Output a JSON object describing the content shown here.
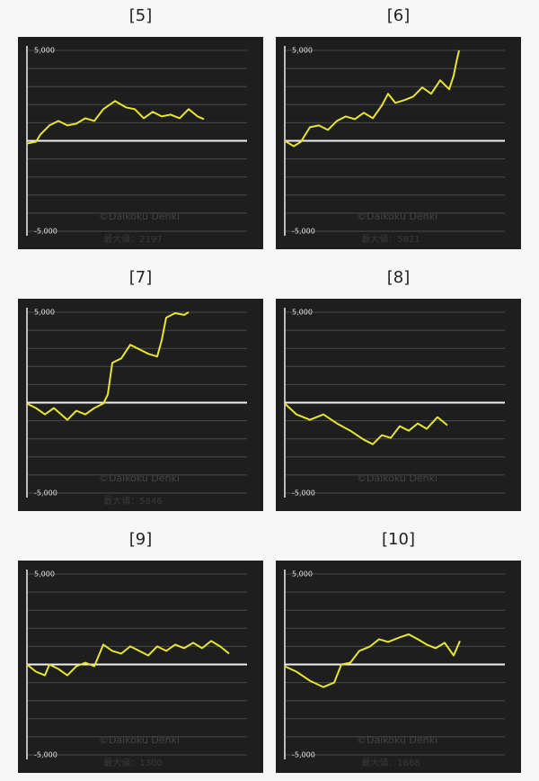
{
  "chart_data": [
    {
      "type": "line",
      "title": "[5]",
      "color": "#e6e632",
      "xlim": [
        0,
        245
      ],
      "ylim": [
        -5000,
        5000
      ],
      "yticks": [
        {
          "value": 5000,
          "label": "5,000"
        },
        {
          "value": -5000,
          "label": "-5,000"
        }
      ],
      "grid_yticks": [
        -5000,
        -4000,
        -3000,
        -2000,
        -1000,
        1000,
        2000,
        3000,
        4000,
        5000
      ],
      "x": [
        0,
        10,
        15,
        25,
        35,
        45,
        55,
        65,
        75,
        85,
        98,
        110,
        120,
        130,
        140,
        150,
        160,
        170,
        180,
        190,
        197
      ],
      "values": [
        -150,
        -50,
        350,
        850,
        1100,
        850,
        950,
        1250,
        1100,
        1750,
        2197,
        1850,
        1750,
        1250,
        1600,
        1350,
        1450,
        1250,
        1750,
        1350,
        1200
      ],
      "max_label": "最大値：2197",
      "watermark": "©Daikoku Denki"
    },
    {
      "type": "line",
      "title": "[6]",
      "color": "#e6e632",
      "xlim": [
        0,
        245
      ],
      "ylim": [
        -5000,
        5000
      ],
      "yticks": [
        {
          "value": 5000,
          "label": "5,000"
        },
        {
          "value": -5000,
          "label": "-5,000"
        }
      ],
      "grid_yticks": [
        -5000,
        -4000,
        -3000,
        -2000,
        -1000,
        1000,
        2000,
        3000,
        4000,
        5000
      ],
      "x": [
        0,
        10,
        18,
        28,
        38,
        48,
        58,
        68,
        78,
        88,
        98,
        108,
        115,
        123,
        133,
        143,
        153,
        163,
        173,
        183,
        188,
        191,
        194
      ],
      "values": [
        0,
        -300,
        -50,
        750,
        850,
        600,
        1100,
        1350,
        1200,
        1550,
        1250,
        1950,
        2600,
        2100,
        2250,
        2450,
        2950,
        2600,
        3350,
        2850,
        3600,
        4350,
        5000
      ],
      "max_label": "最大値：5821",
      "watermark": "©Daikoku Denki"
    },
    {
      "type": "line",
      "title": "[7]",
      "color": "#e6e632",
      "xlim": [
        0,
        245
      ],
      "ylim": [
        -5000,
        5000
      ],
      "yticks": [
        {
          "value": 5000,
          "label": "5,000"
        },
        {
          "value": -5000,
          "label": "-5,000"
        }
      ],
      "grid_yticks": [
        -5000,
        -4000,
        -3000,
        -2000,
        -1000,
        1000,
        2000,
        3000,
        4000,
        5000
      ],
      "x": [
        0,
        10,
        20,
        30,
        45,
        55,
        65,
        75,
        85,
        90,
        95,
        105,
        115,
        125,
        135,
        145,
        150,
        155,
        165,
        175,
        180
      ],
      "values": [
        -50,
        -300,
        -650,
        -300,
        -950,
        -450,
        -650,
        -300,
        -50,
        450,
        2200,
        2450,
        3200,
        2950,
        2700,
        2550,
        3450,
        4700,
        4950,
        4850,
        5000
      ],
      "max_label": "最大値：5846",
      "watermark": "©Daikoku Denki"
    },
    {
      "type": "line",
      "title": "[8]",
      "color": "#e6e632",
      "xlim": [
        0,
        245
      ],
      "ylim": [
        -5000,
        5000
      ],
      "yticks": [
        {
          "value": 5000,
          "label": "5,000"
        },
        {
          "value": -5000,
          "label": "-5,000"
        }
      ],
      "grid_yticks": [
        -5000,
        -4000,
        -3000,
        -2000,
        -1000,
        1000,
        2000,
        3000,
        4000,
        5000
      ],
      "x": [
        0,
        13,
        28,
        43,
        58,
        73,
        88,
        98,
        108,
        118,
        128,
        138,
        148,
        158,
        170,
        181
      ],
      "values": [
        -50,
        -650,
        -950,
        -650,
        -1150,
        -1550,
        -2050,
        -2300,
        -1800,
        -1950,
        -1300,
        -1550,
        -1150,
        -1450,
        -800,
        -1250
      ],
      "watermark": "©Daikoku Denki"
    },
    {
      "type": "line",
      "title": "[9]",
      "color": "#e6e632",
      "xlim": [
        0,
        245
      ],
      "ylim": [
        -5000,
        5000
      ],
      "yticks": [
        {
          "value": 5000,
          "label": "5,000"
        },
        {
          "value": -5000,
          "label": "-5,000"
        }
      ],
      "grid_yticks": [
        -5000,
        -4000,
        -3000,
        -2000,
        -1000,
        1000,
        2000,
        3000,
        4000,
        5000
      ],
      "x": [
        0,
        10,
        20,
        25,
        35,
        45,
        55,
        65,
        75,
        85,
        95,
        105,
        115,
        125,
        135,
        145,
        155,
        165,
        175,
        185,
        195,
        205,
        215,
        225
      ],
      "values": [
        0,
        -400,
        -600,
        0,
        -250,
        -600,
        -100,
        100,
        -100,
        1100,
        750,
        600,
        1000,
        750,
        500,
        1000,
        750,
        1100,
        900,
        1200,
        900,
        1300,
        1000,
        600
      ],
      "max_label": "最大値：1300",
      "watermark": "©Daikoku Denki"
    },
    {
      "type": "line",
      "title": "[10]",
      "color": "#e6e632",
      "xlim": [
        0,
        245
      ],
      "ylim": [
        -5000,
        5000
      ],
      "yticks": [
        {
          "value": 5000,
          "label": "5,000"
        },
        {
          "value": -5000,
          "label": "-5,000"
        }
      ],
      "grid_yticks": [
        -5000,
        -4000,
        -3000,
        -2000,
        -1000,
        1000,
        2000,
        3000,
        4000,
        5000
      ],
      "x": [
        0,
        13,
        28,
        43,
        55,
        63,
        73,
        83,
        95,
        105,
        115,
        128,
        138,
        148,
        158,
        168,
        178,
        188,
        195
      ],
      "values": [
        -100,
        -400,
        -900,
        -1250,
        -1000,
        0,
        100,
        750,
        1000,
        1400,
        1250,
        1500,
        1668,
        1400,
        1100,
        900,
        1200,
        500,
        1300
      ],
      "max_label": "最大値：1668",
      "watermark": "©Daikoku Denki"
    }
  ]
}
